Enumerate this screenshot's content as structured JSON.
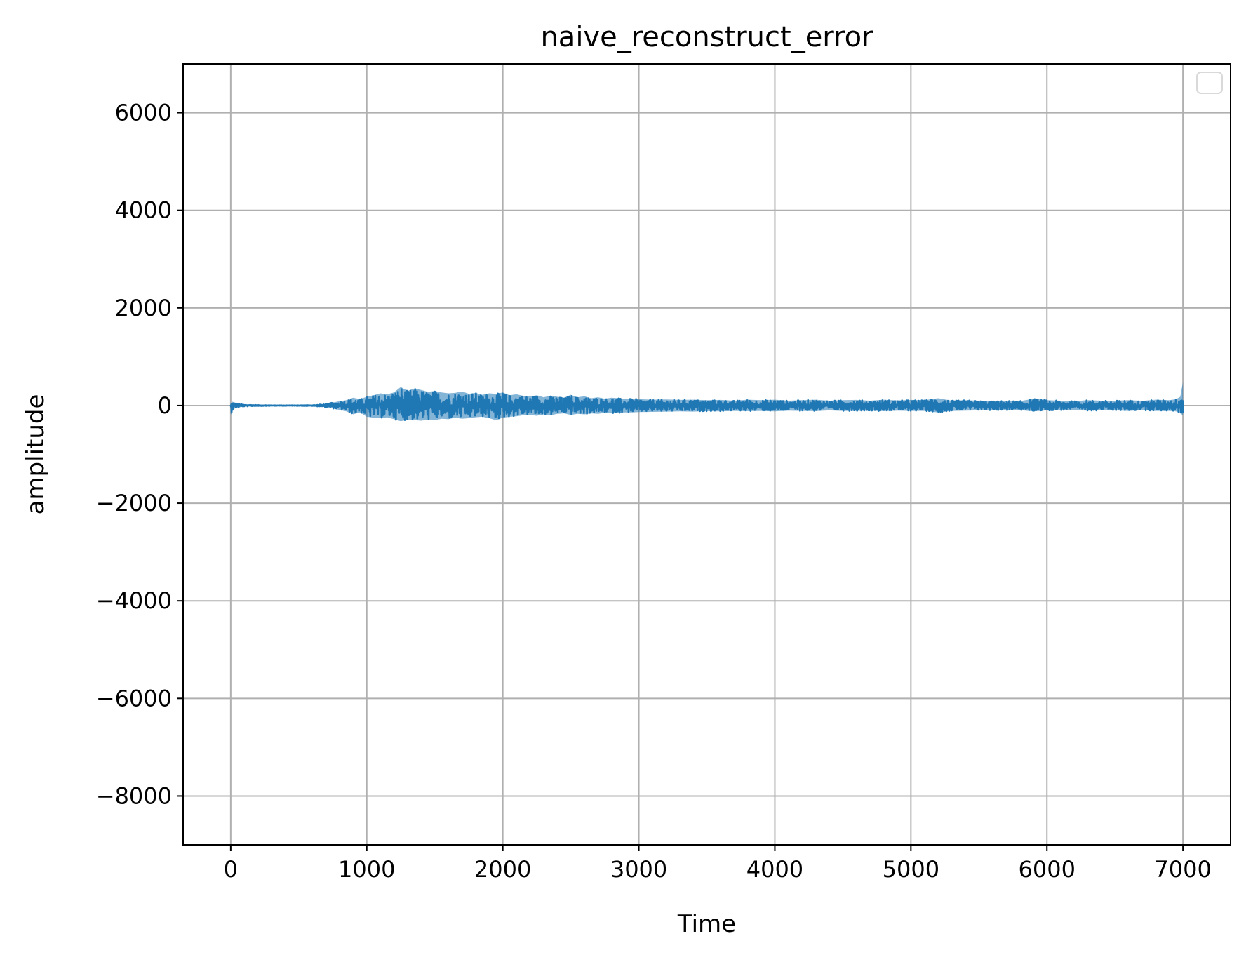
{
  "chart_data": {
    "type": "line",
    "title": "naive_reconstruct_error",
    "xlabel": "Time",
    "ylabel": "amplitude",
    "xlim": [
      -350,
      7350
    ],
    "ylim": [
      -9000,
      7000
    ],
    "x_ticks": [
      0,
      1000,
      2000,
      3000,
      4000,
      5000,
      6000,
      7000
    ],
    "x_tick_labels": [
      "0",
      "1000",
      "2000",
      "3000",
      "4000",
      "5000",
      "6000",
      "7000"
    ],
    "y_ticks": [
      6000,
      4000,
      2000,
      0,
      -2000,
      -4000,
      -6000,
      -8000
    ],
    "y_tick_labels": [
      "6000",
      "4000",
      "2000",
      "0",
      "−2000",
      "−4000",
      "−6000",
      "−8000"
    ],
    "grid": true,
    "legend": {
      "placement": "top-right",
      "entries": []
    },
    "series": [
      {
        "color": "#1f77b4",
        "x": [
          0,
          10,
          30,
          60,
          100,
          200,
          300,
          400,
          500,
          600,
          650,
          700,
          750,
          800,
          850,
          900,
          950,
          1000,
          1050,
          1100,
          1150,
          1200,
          1250,
          1300,
          1350,
          1400,
          1450,
          1500,
          1550,
          1600,
          1650,
          1700,
          1750,
          1800,
          1850,
          1900,
          1950,
          2000,
          2050,
          2100,
          2150,
          2200,
          2250,
          2300,
          2350,
          2400,
          2450,
          2500,
          2550,
          2600,
          2650,
          2700,
          2750,
          2800,
          2850,
          2900,
          2950,
          3000,
          3100,
          3200,
          3300,
          3400,
          3500,
          3600,
          3700,
          3800,
          3900,
          4000,
          4100,
          4200,
          4300,
          4400,
          4500,
          4600,
          4700,
          4800,
          4900,
          5000,
          5100,
          5200,
          5300,
          5400,
          5500,
          5600,
          5700,
          5800,
          5900,
          6000,
          6100,
          6200,
          6300,
          6400,
          6500,
          6600,
          6700,
          6800,
          6900,
          6950,
          6980,
          7000
        ],
        "upper": [
          30,
          80,
          60,
          40,
          20,
          10,
          5,
          5,
          5,
          10,
          20,
          35,
          60,
          90,
          110,
          160,
          130,
          180,
          210,
          250,
          230,
          270,
          380,
          300,
          350,
          320,
          280,
          300,
          270,
          250,
          260,
          290,
          240,
          260,
          220,
          250,
          240,
          270,
          210,
          230,
          200,
          190,
          210,
          170,
          200,
          180,
          160,
          220,
          170,
          190,
          150,
          170,
          140,
          160,
          150,
          130,
          140,
          130,
          120,
          125,
          115,
          120,
          110,
          115,
          100,
          120,
          110,
          120,
          100,
          110,
          120,
          100,
          110,
          115,
          100,
          120,
          105,
          115,
          110,
          150,
          100,
          110,
          100,
          90,
          100,
          90,
          140,
          110,
          100,
          90,
          110,
          100,
          100,
          110,
          95,
          120,
          110,
          130,
          180,
          480
        ],
        "lower": [
          -200,
          -120,
          -60,
          -40,
          -20,
          -10,
          -5,
          -5,
          -5,
          -10,
          -20,
          -35,
          -60,
          -90,
          -120,
          -180,
          -140,
          -230,
          -250,
          -260,
          -240,
          -280,
          -320,
          -290,
          -300,
          -310,
          -290,
          -300,
          -270,
          -280,
          -250,
          -270,
          -260,
          -240,
          -230,
          -260,
          -300,
          -250,
          -230,
          -220,
          -200,
          -190,
          -210,
          -180,
          -200,
          -170,
          -160,
          -190,
          -170,
          -180,
          -160,
          -170,
          -150,
          -160,
          -150,
          -140,
          -140,
          -135,
          -130,
          -125,
          -120,
          -125,
          -115,
          -120,
          -110,
          -115,
          -110,
          -120,
          -105,
          -110,
          -115,
          -100,
          -110,
          -110,
          -105,
          -115,
          -105,
          -110,
          -110,
          -140,
          -110,
          -105,
          -100,
          -95,
          -100,
          -95,
          -120,
          -100,
          -100,
          -95,
          -105,
          -100,
          -100,
          -110,
          -95,
          -110,
          -110,
          -120,
          -160,
          -200
        ]
      }
    ]
  }
}
